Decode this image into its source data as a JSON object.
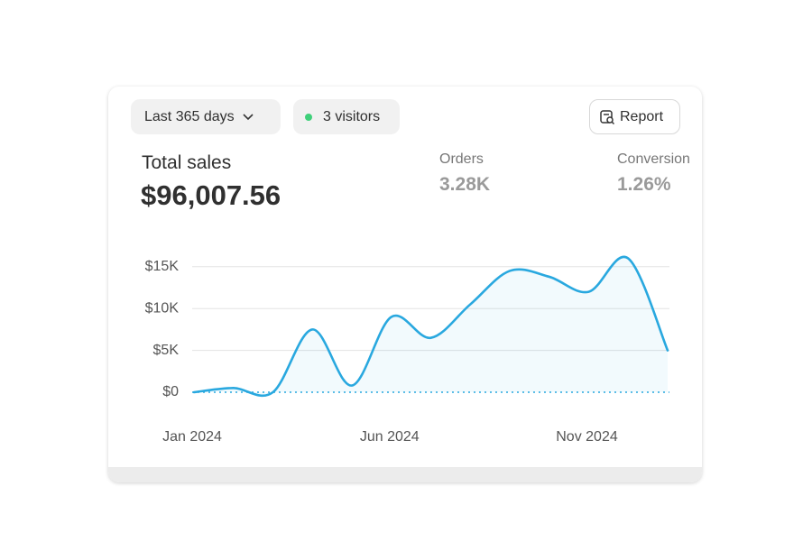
{
  "toolbar": {
    "range": "Last 365 days",
    "visitors": "3 visitors",
    "report": "Report"
  },
  "summary": {
    "label": "Total sales",
    "value": "$96,007.56",
    "metrics": [
      {
        "label": "Orders",
        "value": "3.28K"
      },
      {
        "label": "Conversion",
        "value": "1.26%"
      }
    ]
  },
  "chart_data": {
    "type": "line",
    "categories": [
      "Jan 2024",
      null,
      null,
      null,
      null,
      "Jun 2024",
      null,
      null,
      null,
      null,
      "Nov 2024",
      null,
      null
    ],
    "series": [
      {
        "name": "Total sales",
        "color": "#29a8df",
        "values": [
          0,
          500,
          0,
          7500,
          800,
          9000,
          6500,
          10500,
          14500,
          13800,
          12000,
          16000,
          5000
        ]
      }
    ],
    "ylim": [
      0,
      16000
    ],
    "yticks": [
      {
        "value": 0,
        "label": "$0"
      },
      {
        "value": 5000,
        "label": "$5K"
      },
      {
        "value": 10000,
        "label": "$10K"
      },
      {
        "value": 15000,
        "label": "$15K"
      }
    ],
    "grid": true
  }
}
